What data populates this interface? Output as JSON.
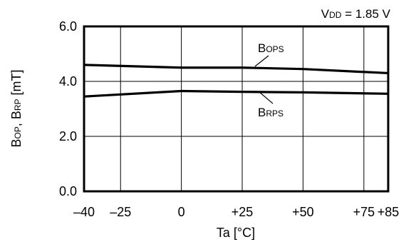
{
  "chart_data": {
    "type": "line",
    "title": "",
    "condition_label": {
      "main": "V",
      "sub": "DD",
      "rest": " = 1.85 V"
    },
    "xlabel": "Ta [°C]",
    "ylabel": {
      "p1": "B",
      "s1": "OP",
      "p2": ", B",
      "s2": "RP",
      "p3": " [mT]"
    },
    "xlim": [
      -40,
      85
    ],
    "ylim": [
      0,
      6
    ],
    "x_ticks": [
      {
        "value": -40,
        "label": "–40"
      },
      {
        "value": -25,
        "label": "–25"
      },
      {
        "value": 0,
        "label": "0"
      },
      {
        "value": 25,
        "label": "+25"
      },
      {
        "value": 50,
        "label": "+50"
      },
      {
        "value": 75,
        "label": "+75"
      },
      {
        "value": 85,
        "label": "+85"
      }
    ],
    "y_ticks": [
      {
        "value": 0,
        "label": "0.0"
      },
      {
        "value": 2,
        "label": "2.0"
      },
      {
        "value": 4,
        "label": "4.0"
      },
      {
        "value": 6,
        "label": "6.0"
      }
    ],
    "grid": true,
    "series": [
      {
        "name": "BOPS",
        "label": {
          "main": "B",
          "sub": "OPS"
        },
        "x": [
          -40,
          0,
          25,
          50,
          85
        ],
        "y": [
          4.6,
          4.5,
          4.5,
          4.45,
          4.3
        ]
      },
      {
        "name": "BRPS",
        "label": {
          "main": "B",
          "sub": "RPS"
        },
        "x": [
          -40,
          0,
          25,
          50,
          85
        ],
        "y": [
          3.45,
          3.65,
          3.62,
          3.6,
          3.55
        ]
      }
    ],
    "colors": {
      "lines": "#000000",
      "grid": "#000000",
      "background": "#ffffff"
    }
  }
}
